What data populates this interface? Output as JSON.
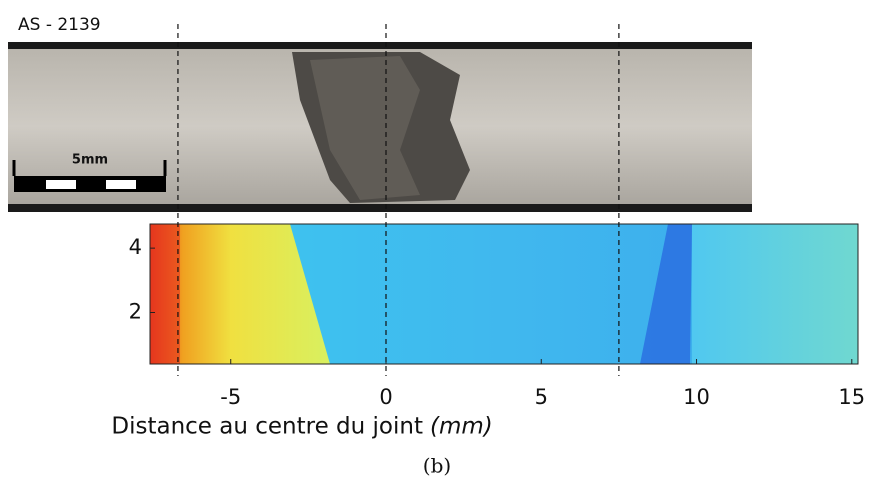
{
  "chart_data": {
    "type": "heatmap",
    "title": "AS - 2139",
    "scale_bar_label": "5mm",
    "xlabel": "Distance au centre du joint",
    "xlabel_unit": "(mm)",
    "caption": "(b)",
    "xlim": [
      -7.6,
      15.2
    ],
    "xticks": [
      -5,
      0,
      5,
      10,
      15
    ],
    "ylim": [
      0.4,
      4.75
    ],
    "yticks": [
      2,
      4
    ],
    "reference_lines": [
      -6.7,
      0,
      7.5
    ]
  }
}
